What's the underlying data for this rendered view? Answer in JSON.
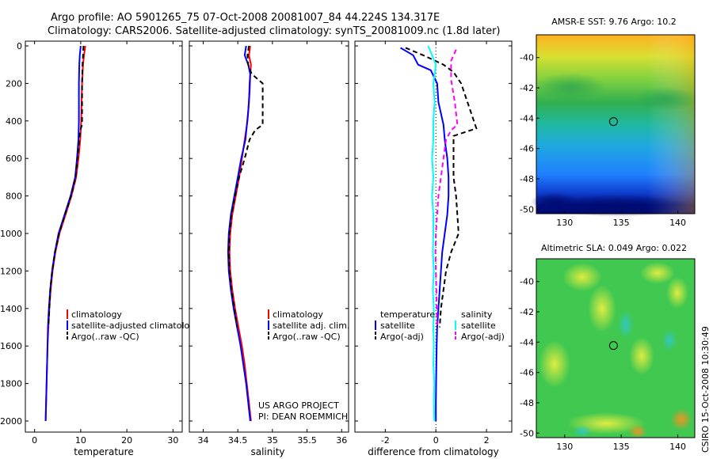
{
  "title": {
    "line1": "Argo profile: AO 5901265_75 07-Oct-2008 20081007_84 44.224S 134.317E",
    "line2": "Climatology: CARS2006. Satellite-adjusted climatology: synTS_20081009.nc (1.8d later)"
  },
  "credit": "CSIRO 15-Oct-2008 10:30:49",
  "colors": {
    "red": "#ff0000",
    "blue": "#0000ff",
    "black": "#000000",
    "cyan": "#00ffff",
    "magenta": "#ff00ff"
  },
  "chart_data": [
    {
      "id": "temperature-profile",
      "type": "line",
      "xlabel": "temperature",
      "ylabel": "",
      "xlim": [
        -2,
        32
      ],
      "ylim": [
        2050,
        0
      ],
      "xticks": [
        "0",
        "10",
        "20",
        "30"
      ],
      "xtick_values": [
        0,
        10,
        20,
        30
      ],
      "yticks": [
        "0",
        "200",
        "400",
        "600",
        "800",
        "1000",
        "1200",
        "1400",
        "1600",
        "1800",
        "2000"
      ],
      "ytick_values": [
        0,
        200,
        400,
        600,
        800,
        1000,
        1200,
        1400,
        1600,
        1800,
        2000
      ],
      "legend": [
        "climatology",
        "satellite-adjusted climatology",
        "Argo(..raw -QC)"
      ],
      "series": [
        {
          "name": "climatology",
          "color": "red",
          "dash": false,
          "points": [
            [
              11.0,
              0
            ],
            [
              10.7,
              50
            ],
            [
              10.5,
              100
            ],
            [
              10.3,
              200
            ],
            [
              10.2,
              300
            ],
            [
              10.1,
              400
            ],
            [
              9.9,
              500
            ],
            [
              9.5,
              600
            ],
            [
              9.0,
              700
            ],
            [
              8.0,
              800
            ],
            [
              6.7,
              900
            ],
            [
              5.4,
              1000
            ],
            [
              4.5,
              1100
            ],
            [
              3.9,
              1200
            ],
            [
              3.5,
              1300
            ],
            [
              3.2,
              1400
            ],
            [
              3.0,
              1500
            ],
            [
              2.8,
              1600
            ],
            [
              2.7,
              1700
            ],
            [
              2.6,
              1800
            ],
            [
              2.5,
              1900
            ],
            [
              2.4,
              2000
            ]
          ]
        },
        {
          "name": "satellite-adjusted climatology",
          "color": "blue",
          "dash": false,
          "points": [
            [
              10.0,
              0
            ],
            [
              9.8,
              50
            ],
            [
              9.7,
              100
            ],
            [
              9.6,
              200
            ],
            [
              9.6,
              300
            ],
            [
              9.6,
              400
            ],
            [
              9.5,
              500
            ],
            [
              9.2,
              600
            ],
            [
              8.8,
              700
            ],
            [
              7.8,
              800
            ],
            [
              6.5,
              900
            ],
            [
              5.2,
              1000
            ],
            [
              4.4,
              1100
            ],
            [
              3.8,
              1200
            ],
            [
              3.4,
              1300
            ],
            [
              3.1,
              1400
            ],
            [
              2.9,
              1500
            ],
            [
              2.8,
              1600
            ],
            [
              2.7,
              1700
            ],
            [
              2.6,
              1800
            ],
            [
              2.5,
              1900
            ],
            [
              2.4,
              2000
            ]
          ]
        },
        {
          "name": "Argo(..raw -QC)",
          "color": "black",
          "dash": true,
          "points": [
            [
              10.6,
              0
            ],
            [
              10.5,
              50
            ],
            [
              10.4,
              100
            ],
            [
              10.3,
              200
            ],
            [
              10.3,
              300
            ],
            [
              10.3,
              420
            ],
            [
              9.9,
              450
            ],
            [
              9.6,
              520
            ],
            [
              9.3,
              600
            ],
            [
              8.9,
              700
            ],
            [
              7.9,
              800
            ],
            [
              6.6,
              900
            ],
            [
              5.3,
              1000
            ],
            [
              4.4,
              1100
            ],
            [
              3.8,
              1200
            ],
            [
              3.4,
              1300
            ],
            [
              3.2,
              1400
            ],
            [
              3.0,
              1500
            ]
          ]
        }
      ]
    },
    {
      "id": "salinity-profile",
      "type": "line",
      "xlabel": "salinity",
      "xlim": [
        33.8,
        36.1
      ],
      "ylim": [
        2050,
        0
      ],
      "xticks": [
        "34",
        "34.5",
        "35",
        "35.5",
        "36"
      ],
      "xtick_values": [
        34,
        34.5,
        35,
        35.5,
        36
      ],
      "legend": [
        "climatology",
        "satellite adj. clim.",
        "Argo(..raw -QC)"
      ],
      "annotation": [
        "US ARGO PROJECT",
        "PI: DEAN ROEMMICH"
      ],
      "series": [
        {
          "name": "climatology",
          "color": "red",
          "dash": false,
          "points": [
            [
              34.68,
              0
            ],
            [
              34.66,
              50
            ],
            [
              34.69,
              100
            ],
            [
              34.67,
              200
            ],
            [
              34.66,
              300
            ],
            [
              34.64,
              400
            ],
            [
              34.6,
              500
            ],
            [
              34.56,
              600
            ],
            [
              34.52,
              700
            ],
            [
              34.47,
              800
            ],
            [
              34.42,
              900
            ],
            [
              34.39,
              1000
            ],
            [
              34.38,
              1100
            ],
            [
              34.39,
              1200
            ],
            [
              34.42,
              1300
            ],
            [
              34.46,
              1400
            ],
            [
              34.51,
              1500
            ],
            [
              34.56,
              1600
            ],
            [
              34.6,
              1700
            ],
            [
              34.63,
              1800
            ],
            [
              34.66,
              1900
            ],
            [
              34.69,
              2000
            ]
          ]
        },
        {
          "name": "satellite adj. clim.",
          "color": "blue",
          "dash": false,
          "points": [
            [
              34.62,
              0
            ],
            [
              34.6,
              50
            ],
            [
              34.65,
              100
            ],
            [
              34.68,
              150
            ],
            [
              34.67,
              250
            ],
            [
              34.65,
              350
            ],
            [
              34.61,
              500
            ],
            [
              34.55,
              600
            ],
            [
              34.5,
              700
            ],
            [
              34.45,
              800
            ],
            [
              34.4,
              900
            ],
            [
              34.37,
              1000
            ],
            [
              34.36,
              1100
            ],
            [
              34.37,
              1200
            ],
            [
              34.4,
              1300
            ],
            [
              34.44,
              1400
            ],
            [
              34.49,
              1500
            ],
            [
              34.54,
              1600
            ],
            [
              34.58,
              1700
            ],
            [
              34.62,
              1800
            ],
            [
              34.65,
              1900
            ],
            [
              34.68,
              2000
            ]
          ]
        },
        {
          "name": "Argo(..raw -QC)",
          "color": "black",
          "dash": true,
          "points": [
            [
              34.66,
              0
            ],
            [
              34.64,
              50
            ],
            [
              34.65,
              100
            ],
            [
              34.7,
              150
            ],
            [
              34.86,
              200
            ],
            [
              34.86,
              300
            ],
            [
              34.86,
              420
            ],
            [
              34.75,
              450
            ],
            [
              34.67,
              500
            ],
            [
              34.6,
              600
            ],
            [
              34.52,
              700
            ],
            [
              34.46,
              800
            ],
            [
              34.41,
              900
            ],
            [
              34.38,
              1000
            ],
            [
              34.37,
              1100
            ],
            [
              34.38,
              1200
            ],
            [
              34.41,
              1300
            ],
            [
              34.45,
              1400
            ],
            [
              34.49,
              1500
            ]
          ]
        }
      ]
    },
    {
      "id": "difference-profile",
      "type": "line",
      "xlabel": "difference from climatology",
      "xlim": [
        -3.2,
        3.0
      ],
      "ylim": [
        2050,
        0
      ],
      "xticks": [
        "-2",
        "0",
        "2"
      ],
      "xtick_values": [
        -2,
        0,
        2
      ],
      "legend_headers": [
        "temperature",
        "salinity"
      ],
      "legend": [
        "satellite",
        "Argo(-adj)",
        "satellite",
        "Argo(-adj)"
      ],
      "series": [
        {
          "name": "temperature satellite",
          "color": "blue",
          "dash": false,
          "points": [
            [
              -1.4,
              10
            ],
            [
              -0.9,
              50
            ],
            [
              -0.7,
              100
            ],
            [
              -0.2,
              130
            ],
            [
              0.05,
              200
            ],
            [
              0.1,
              300
            ],
            [
              0.3,
              420
            ],
            [
              0.35,
              500
            ],
            [
              0.45,
              600
            ],
            [
              0.5,
              700
            ],
            [
              0.5,
              800
            ],
            [
              0.45,
              900
            ],
            [
              0.35,
              1000
            ],
            [
              0.25,
              1100
            ],
            [
              0.2,
              1200
            ],
            [
              0.15,
              1300
            ],
            [
              0.1,
              1400
            ],
            [
              0.05,
              1500
            ],
            [
              0.03,
              1600
            ],
            [
              0.02,
              1700
            ],
            [
              0.01,
              1800
            ],
            [
              0.0,
              1900
            ],
            [
              0.0,
              2000
            ]
          ]
        },
        {
          "name": "temperature Argo(-adj)",
          "color": "black",
          "dash": true,
          "points": [
            [
              -1.2,
              10
            ],
            [
              -0.5,
              50
            ],
            [
              0.3,
              100
            ],
            [
              0.7,
              140
            ],
            [
              1.0,
              200
            ],
            [
              1.5,
              400
            ],
            [
              1.6,
              440
            ],
            [
              0.7,
              480
            ],
            [
              0.7,
              600
            ],
            [
              0.7,
              700
            ],
            [
              0.8,
              800
            ],
            [
              0.85,
              900
            ],
            [
              0.9,
              1000
            ],
            [
              0.6,
              1100
            ],
            [
              0.4,
              1200
            ],
            [
              0.3,
              1300
            ],
            [
              0.2,
              1400
            ],
            [
              0.15,
              1500
            ]
          ]
        },
        {
          "name": "salinity satellite",
          "color": "cyan",
          "dash": false,
          "points": [
            [
              -0.3,
              0
            ],
            [
              0.0,
              100
            ],
            [
              -0.1,
              200
            ],
            [
              -0.05,
              300
            ],
            [
              -0.1,
              400
            ],
            [
              -0.1,
              500
            ],
            [
              -0.15,
              600
            ],
            [
              -0.1,
              700
            ],
            [
              -0.15,
              800
            ],
            [
              -0.1,
              900
            ],
            [
              -0.1,
              1000
            ],
            [
              -0.12,
              1100
            ],
            [
              -0.08,
              1200
            ],
            [
              -0.12,
              1300
            ],
            [
              -0.08,
              1400
            ],
            [
              -0.1,
              1500
            ],
            [
              -0.08,
              1600
            ],
            [
              -0.1,
              1700
            ],
            [
              -0.06,
              1800
            ],
            [
              -0.08,
              1900
            ],
            [
              -0.06,
              2000
            ]
          ]
        },
        {
          "name": "salinity Argo(-adj)",
          "color": "magenta",
          "dash": true,
          "points": [
            [
              0.8,
              20
            ],
            [
              0.6,
              80
            ],
            [
              0.6,
              180
            ],
            [
              0.75,
              300
            ],
            [
              0.85,
              420
            ],
            [
              0.6,
              450
            ],
            [
              0.4,
              500
            ],
            [
              0.3,
              600
            ],
            [
              0.2,
              700
            ],
            [
              0.1,
              800
            ],
            [
              0.05,
              900
            ],
            [
              0.0,
              1000
            ],
            [
              -0.02,
              1100
            ],
            [
              0.0,
              1200
            ],
            [
              0.02,
              1300
            ],
            [
              0.03,
              1400
            ],
            [
              0.05,
              1500
            ]
          ]
        }
      ]
    },
    {
      "id": "sst-map",
      "type": "heatmap",
      "title": "AMSR-E SST: 9.76 Argo: 10.2",
      "xlim": [
        127.5,
        141.5
      ],
      "ylim": [
        -50.3,
        -38.5
      ],
      "xticks": [
        "130",
        "135",
        "140"
      ],
      "xtick_values": [
        130,
        135,
        140
      ],
      "yticks": [
        "-40",
        "-42",
        "-44",
        "-46",
        "-48",
        "-50"
      ],
      "ytick_values": [
        -40,
        -42,
        -44,
        -46,
        -48,
        -50
      ],
      "marker": {
        "lon": 134.317,
        "lat": -44.224
      }
    },
    {
      "id": "sla-map",
      "type": "heatmap",
      "title": "Altimetric SLA: 0.049 Argo: 0.022",
      "xlim": [
        127.5,
        141.5
      ],
      "ylim": [
        -50.3,
        -38.5
      ],
      "xticks": [
        "130",
        "135",
        "140"
      ],
      "xtick_values": [
        130,
        135,
        140
      ],
      "yticks": [
        "-40",
        "-42",
        "-44",
        "-46",
        "-48",
        "-50"
      ],
      "ytick_values": [
        -40,
        -42,
        -44,
        -46,
        -48,
        -50
      ],
      "marker": {
        "lon": 134.317,
        "lat": -44.224
      }
    }
  ]
}
